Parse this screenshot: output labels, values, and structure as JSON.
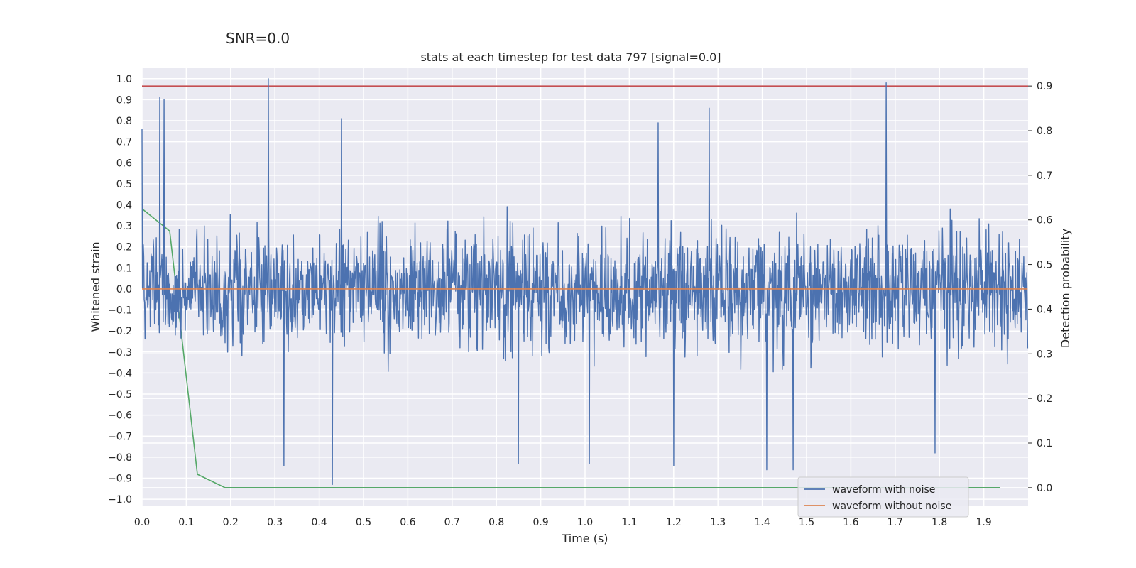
{
  "chart_data": {
    "type": "line",
    "suptitle": "SNR=0.0",
    "title": "stats at each timestep for test data 797 [signal=0.0]",
    "xlabel": "Time (s)",
    "ylabel": "Whitened strain",
    "y2label": "Detection probability",
    "xlim": [
      0.0,
      2.0
    ],
    "ylim": [
      -1.03,
      1.05
    ],
    "y2lim": [
      -0.04,
      0.94
    ],
    "xticks": [
      "0.0",
      "0.1",
      "0.2",
      "0.3",
      "0.4",
      "0.5",
      "0.6",
      "0.7",
      "0.8",
      "0.9",
      "1.0",
      "1.1",
      "1.2",
      "1.3",
      "1.4",
      "1.5",
      "1.6",
      "1.7",
      "1.8",
      "1.9"
    ],
    "yticks": [
      "1.0",
      "0.9",
      "0.8",
      "0.7",
      "0.6",
      "0.5",
      "0.4",
      "0.3",
      "0.2",
      "0.1",
      "0.0",
      "−0.1",
      "−0.2",
      "−0.3",
      "−0.4",
      "−0.5",
      "−0.6",
      "−0.7",
      "−0.8",
      "−0.9",
      "−1.0"
    ],
    "y2ticks": [
      "0.9",
      "0.8",
      "0.7",
      "0.6",
      "0.5",
      "0.4",
      "0.3",
      "0.2",
      "0.1",
      "0.0"
    ],
    "grid": true,
    "legend_position": "lower-right",
    "series": [
      {
        "name": "waveform with noise",
        "color": "#4c72b0",
        "axis": "left",
        "n_samples": 2048,
        "noise_seed": 797,
        "x_range": [
          0.0,
          1.999
        ],
        "amplitude_range": [
          -0.93,
          1.0
        ],
        "notable_peaks": [
          {
            "x": 0.0,
            "y": 0.76
          },
          {
            "x": 0.04,
            "y": 0.91
          },
          {
            "x": 0.05,
            "y": 0.9
          },
          {
            "x": 0.285,
            "y": 1.0
          },
          {
            "x": 0.45,
            "y": 0.81
          },
          {
            "x": 1.165,
            "y": 0.79
          },
          {
            "x": 1.28,
            "y": 0.86
          },
          {
            "x": 1.68,
            "y": 0.98
          },
          {
            "x": 0.32,
            "y": -0.84
          },
          {
            "x": 0.43,
            "y": -0.93
          },
          {
            "x": 0.85,
            "y": -0.83
          },
          {
            "x": 1.01,
            "y": -0.83
          },
          {
            "x": 1.2,
            "y": -0.84
          },
          {
            "x": 1.41,
            "y": -0.86
          },
          {
            "x": 1.47,
            "y": -0.86
          },
          {
            "x": 1.79,
            "y": -0.78
          }
        ]
      },
      {
        "name": "waveform without noise",
        "color": "#dd8452",
        "axis": "left",
        "x": [
          0.0,
          1.999
        ],
        "y": [
          0.0,
          0.0
        ]
      },
      {
        "name": "detection probability",
        "color": "#55a868",
        "axis": "right",
        "in_legend": false,
        "x": [
          0.0,
          0.0625,
          0.125,
          0.1875,
          0.25,
          0.5,
          1.0,
          1.5,
          1.9375
        ],
        "y": [
          0.625,
          0.575,
          0.03,
          0.0,
          0.0,
          0.0,
          0.0,
          0.0,
          0.0
        ]
      },
      {
        "name": "threshold",
        "color": "#c44e52",
        "axis": "right",
        "in_legend": false,
        "x": [
          0.0,
          2.0
        ],
        "y": [
          0.9,
          0.9
        ]
      }
    ]
  }
}
